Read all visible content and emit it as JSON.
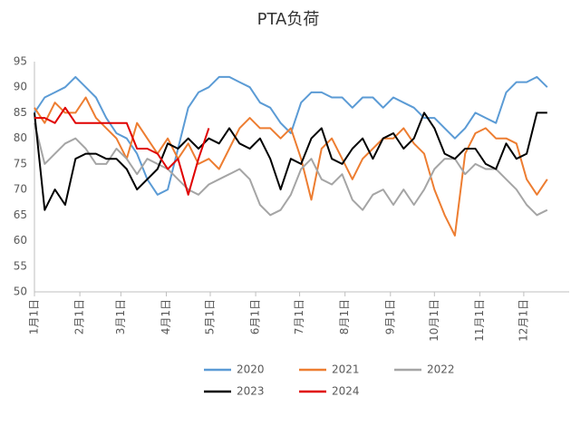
{
  "chart_data": {
    "type": "line",
    "title": "PTA负荷",
    "x": [
      0,
      7,
      14,
      21,
      28,
      35,
      42,
      49,
      56,
      63,
      70,
      77,
      84,
      91,
      98,
      105,
      112,
      119,
      126,
      133,
      140,
      147,
      154,
      161,
      168,
      175,
      182,
      189,
      196,
      203,
      210,
      217,
      224,
      231,
      238,
      245,
      252,
      259,
      266,
      273,
      280,
      287,
      294,
      301,
      308,
      315,
      322,
      329,
      336,
      343,
      350
    ],
    "xlim": [
      0,
      365
    ],
    "xticks": [
      {
        "value": 0,
        "label": "1月1日"
      },
      {
        "value": 31,
        "label": "2月1日"
      },
      {
        "value": 59,
        "label": "3月1日"
      },
      {
        "value": 90,
        "label": "4月1日"
      },
      {
        "value": 120,
        "label": "5月1日"
      },
      {
        "value": 151,
        "label": "6月1日"
      },
      {
        "value": 181,
        "label": "7月1日"
      },
      {
        "value": 212,
        "label": "8月1日"
      },
      {
        "value": 243,
        "label": "9月1日"
      },
      {
        "value": 273,
        "label": "10月1日"
      },
      {
        "value": 304,
        "label": "11月1日"
      },
      {
        "value": 334,
        "label": "12月1日"
      }
    ],
    "ylim": [
      50,
      95
    ],
    "yticks": [
      50,
      55,
      60,
      65,
      70,
      75,
      80,
      85,
      90,
      95
    ],
    "grid": false,
    "series": [
      {
        "name": "2020",
        "color": "#5b9bd5",
        "values": [
          85,
          88,
          89,
          90,
          92,
          90,
          88,
          84,
          81,
          80,
          77,
          72,
          69,
          70,
          78,
          86,
          89,
          90,
          92,
          92,
          91,
          90,
          87,
          86,
          83,
          81,
          87,
          89,
          89,
          88,
          88,
          86,
          88,
          88,
          86,
          88,
          87,
          86,
          84,
          84,
          82,
          80,
          82,
          85,
          84,
          83,
          89,
          91,
          91,
          92,
          90
        ]
      },
      {
        "name": "2021",
        "color": "#ed7d31",
        "values": [
          86,
          83,
          87,
          85,
          85,
          88,
          84,
          82,
          80,
          76,
          83,
          80,
          77,
          80,
          76,
          79,
          75,
          76,
          74,
          78,
          82,
          84,
          82,
          82,
          80,
          82,
          76,
          68,
          78,
          80,
          76,
          72,
          76,
          78,
          80,
          80,
          82,
          79,
          77,
          70,
          65,
          61,
          77,
          81,
          82,
          80,
          80,
          79,
          72,
          69,
          72
        ]
      },
      {
        "name": "2022",
        "color": "#a5a5a5",
        "values": [
          83,
          75,
          77,
          79,
          80,
          78,
          75,
          75,
          78,
          76,
          73,
          76,
          75,
          74,
          72,
          70,
          69,
          71,
          72,
          73,
          74,
          72,
          67,
          65,
          66,
          69,
          74,
          76,
          72,
          71,
          73,
          68,
          66,
          69,
          70,
          67,
          70,
          67,
          70,
          74,
          76,
          76,
          73,
          75,
          74,
          74,
          72,
          70,
          67,
          65,
          66
        ]
      },
      {
        "name": "2023",
        "color": "#000000",
        "values": [
          85,
          66,
          70,
          67,
          76,
          77,
          77,
          76,
          76,
          74,
          70,
          72,
          74,
          79,
          78,
          80,
          78,
          80,
          79,
          82,
          79,
          78,
          80,
          76,
          70,
          76,
          75,
          80,
          82,
          76,
          75,
          78,
          80,
          76,
          80,
          81,
          78,
          80,
          85,
          82,
          77,
          76,
          78,
          78,
          75,
          74,
          79,
          76,
          77,
          85,
          85
        ]
      },
      {
        "name": "2024",
        "color": "#e00000",
        "values": [
          84,
          84,
          83,
          86,
          83,
          83,
          83,
          83,
          83,
          83,
          78,
          78,
          77,
          74,
          76,
          69,
          76,
          82,
          null,
          null,
          null,
          null,
          null,
          null,
          null,
          null,
          null,
          null,
          null,
          null,
          null,
          null,
          null,
          null,
          null,
          null,
          null,
          null,
          null,
          null,
          null,
          null,
          null,
          null,
          null,
          null,
          null,
          null,
          null,
          null,
          null
        ]
      }
    ]
  }
}
